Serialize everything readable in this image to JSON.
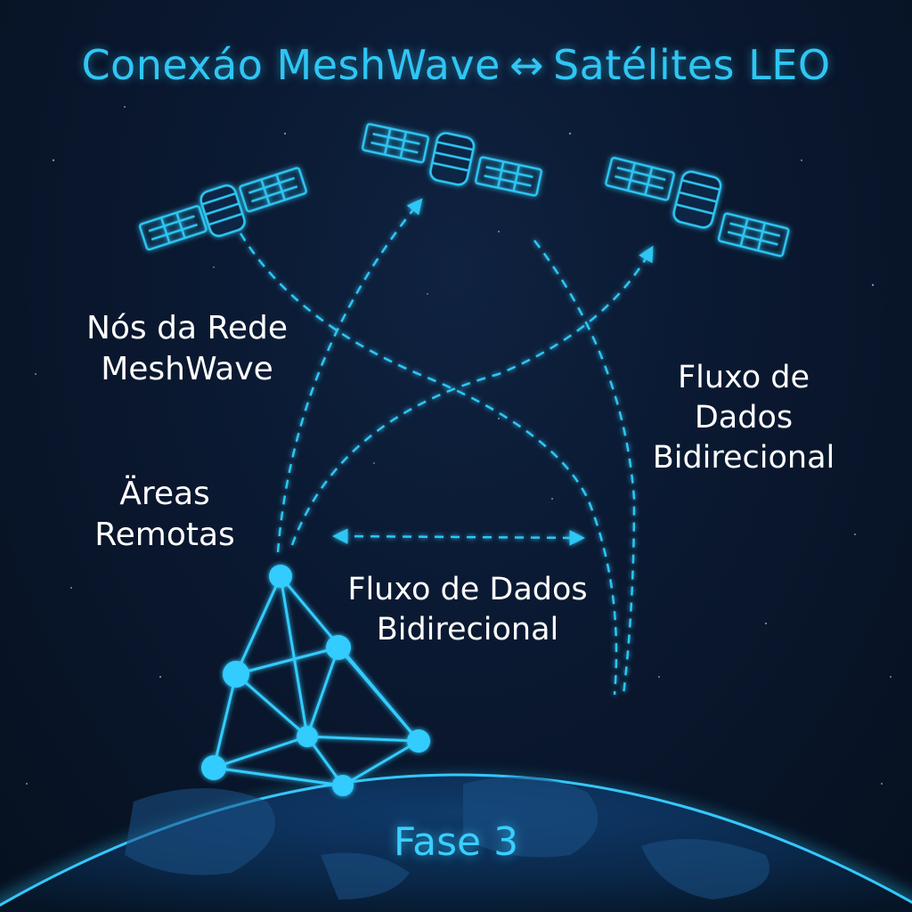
{
  "title": {
    "left": "Conexáo MeshWave",
    "arrow": "↔",
    "right": "Satélites LEO"
  },
  "labels": {
    "mesh_nodes": [
      "Nós da Rede",
      "MeshWave"
    ],
    "remote_areas": [
      "Äreas",
      "Remotas"
    ],
    "flow_right": [
      "Fluxo de",
      "Dados",
      "Bidirecional"
    ],
    "flow_center": [
      "Fluxo de Dados",
      "Bidirecional"
    ]
  },
  "phase": "Fase 3",
  "colors": {
    "accent": "#2fc6f4",
    "node": "#33ccff",
    "background": "#0a1830",
    "text": "#ffffff"
  },
  "icons": [
    "satellite-icon",
    "satellite-icon",
    "satellite-icon",
    "globe",
    "mesh-network"
  ]
}
